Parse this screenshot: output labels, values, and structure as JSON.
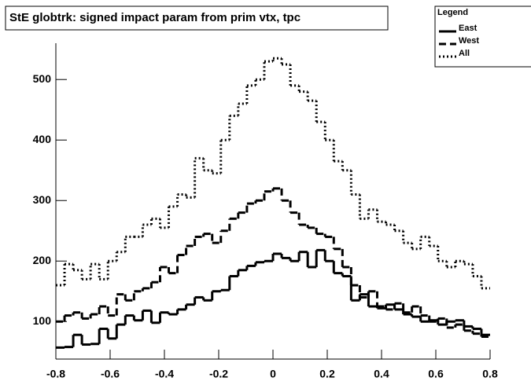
{
  "chart_data": {
    "type": "histogram",
    "title": "StE globtrk: signed impact param from prim vtx, tpc",
    "legend_title": "Legend",
    "legend": "top-right",
    "bins": [
      -0.8,
      -0.768,
      -0.736,
      -0.704,
      -0.672,
      -0.64,
      -0.608,
      -0.576,
      -0.544,
      -0.512,
      -0.48,
      -0.448,
      -0.416,
      -0.384,
      -0.352,
      -0.32,
      -0.288,
      -0.256,
      -0.224,
      -0.192,
      -0.16,
      -0.128,
      -0.096,
      -0.064,
      -0.032,
      0,
      0.032,
      0.064,
      0.096,
      0.128,
      0.16,
      0.192,
      0.224,
      0.256,
      0.288,
      0.32,
      0.352,
      0.384,
      0.416,
      0.448,
      0.48,
      0.512,
      0.544,
      0.576,
      0.608,
      0.64,
      0.672,
      0.704,
      0.736,
      0.768,
      0.8
    ],
    "series": [
      {
        "name": "East",
        "color": "#000000",
        "dash": "solid",
        "values": [
          57,
          58,
          78,
          62,
          63,
          88,
          72,
          95,
          110,
          102,
          118,
          98,
          115,
          112,
          120,
          128,
          140,
          135,
          150,
          152,
          175,
          185,
          192,
          198,
          200,
          212,
          205,
          200,
          215,
          190,
          218,
          200,
          180,
          175,
          135,
          145,
          125,
          122,
          128,
          120,
          112,
          108,
          100,
          102,
          95,
          100,
          102,
          92,
          88,
          78
        ]
      },
      {
        "name": "West",
        "color": "#000000",
        "dash": "dashed",
        "values": [
          100,
          110,
          115,
          105,
          112,
          125,
          110,
          145,
          135,
          150,
          155,
          165,
          190,
          180,
          210,
          225,
          240,
          245,
          230,
          250,
          270,
          280,
          295,
          300,
          315,
          320,
          300,
          280,
          260,
          255,
          245,
          240,
          220,
          190,
          160,
          140,
          150,
          125,
          120,
          130,
          115,
          125,
          110,
          100,
          105,
          90,
          95,
          85,
          80,
          75
        ]
      },
      {
        "name": "All",
        "color": "#000000",
        "dash": "dotted",
        "values": [
          160,
          195,
          185,
          170,
          195,
          170,
          200,
          215,
          240,
          240,
          260,
          270,
          255,
          290,
          310,
          305,
          370,
          350,
          345,
          400,
          440,
          460,
          490,
          500,
          530,
          535,
          525,
          490,
          480,
          465,
          430,
          400,
          365,
          350,
          310,
          270,
          285,
          265,
          260,
          250,
          230,
          220,
          240,
          225,
          200,
          190,
          200,
          195,
          175,
          155
        ]
      }
    ],
    "xlim": [
      -0.8,
      0.8
    ],
    "xticks": [
      -0.8,
      -0.6,
      -0.4,
      -0.2,
      0,
      0.2,
      0.4,
      0.6,
      0.8
    ],
    "ylim": [
      38,
      560
    ],
    "yticks": [
      100,
      200,
      300,
      400,
      500
    ],
    "grid": false
  }
}
